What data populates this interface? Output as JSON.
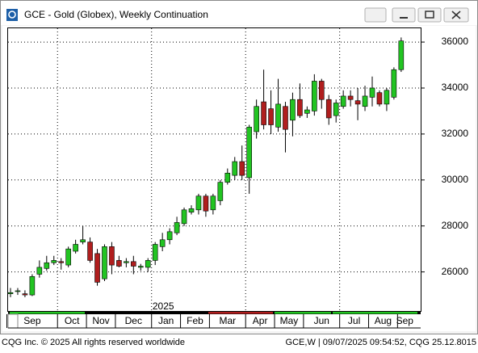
{
  "window": {
    "title": "GCE - Gold (Globex), Weekly Continuation"
  },
  "chart_data": {
    "type": "candlestick",
    "open": [
      25050,
      25150,
      25050,
      25000,
      25900,
      26150,
      26400,
      26450,
      26300,
      26900,
      27300,
      27300,
      26800,
      25700,
      27100,
      26500,
      26400,
      26450,
      26200,
      26200,
      26500,
      27100,
      27400,
      27700,
      28100,
      28600,
      28700,
      29300,
      28700,
      29100,
      29900,
      30200,
      30800,
      30100,
      32100,
      33400,
      33100,
      32300,
      33200,
      32600,
      33500,
      32900,
      33000,
      34300,
      33500,
      32800,
      33200,
      33650,
      33450,
      33200,
      33600,
      33800,
      33300,
      33600,
      34800
    ],
    "high": [
      25300,
      25300,
      25200,
      25900,
      26500,
      26700,
      26700,
      26600,
      27100,
      27400,
      28000,
      27500,
      27000,
      27200,
      27300,
      26700,
      26600,
      26700,
      26350,
      26600,
      27300,
      27700,
      27900,
      28400,
      28800,
      28900,
      29400,
      29400,
      29400,
      30000,
      30500,
      31000,
      31500,
      32400,
      33500,
      34800,
      33900,
      34400,
      33400,
      33800,
      34200,
      33200,
      34600,
      34400,
      33700,
      33500,
      33900,
      33900,
      34000,
      34100,
      34500,
      33900,
      34000,
      34900,
      36200
    ],
    "low": [
      24900,
      25000,
      24900,
      24950,
      25750,
      26050,
      26300,
      26100,
      26200,
      26800,
      27200,
      26400,
      25400,
      25600,
      25900,
      26200,
      26200,
      25900,
      26050,
      26000,
      26300,
      26900,
      27200,
      27600,
      28000,
      28500,
      28500,
      28400,
      28500,
      28900,
      29800,
      30000,
      30000,
      29400,
      31800,
      32200,
      32000,
      32100,
      31200,
      31900,
      32700,
      32700,
      32800,
      33100,
      32400,
      32500,
      33100,
      33200,
      32600,
      33000,
      33200,
      33200,
      33000,
      33500,
      34700
    ],
    "close": [
      25100,
      25180,
      25000,
      25800,
      26200,
      26400,
      26500,
      26400,
      27000,
      27200,
      27400,
      26500,
      25550,
      27100,
      26300,
      26250,
      26450,
      26250,
      26250,
      26500,
      27200,
      27400,
      27750,
      28150,
      28700,
      28750,
      29300,
      28650,
      29300,
      29900,
      30300,
      30800,
      30200,
      32300,
      33200,
      32400,
      32400,
      33300,
      32200,
      33500,
      32800,
      33050,
      34300,
      33500,
      32700,
      33350,
      33650,
      33500,
      33300,
      33650,
      34000,
      33300,
      33900,
      34800,
      36050
    ],
    "up_color": "#22c422",
    "down_color": "#b01e1e",
    "ylim": [
      24300,
      36600
    ],
    "yticks": [
      26000,
      28000,
      30000,
      32000,
      34000,
      36000
    ],
    "grid": true,
    "xticks": [
      {
        "value": 0,
        "label": "Sep"
      },
      {
        "value": 7,
        "label": "Oct"
      },
      {
        "value": 11,
        "label": "Nov"
      },
      {
        "value": 15,
        "label": "Dec"
      },
      {
        "value": 20,
        "label": "Jan"
      },
      {
        "value": 24,
        "label": "Feb"
      },
      {
        "value": 28,
        "label": "Mar"
      },
      {
        "value": 33,
        "label": "Apr"
      },
      {
        "value": 37,
        "label": "May"
      },
      {
        "value": 41,
        "label": "Jun"
      },
      {
        "value": 46,
        "label": "Jul"
      },
      {
        "value": 50,
        "label": "Aug"
      },
      {
        "value": 54,
        "label": "Sep"
      }
    ],
    "year_label": "2025"
  },
  "footer": {
    "left": "CQG Inc. © 2025 All rights reserved worldwide",
    "right": "GCE,W | 09/07/2025 09:54:52, CQG 25.12.8015"
  }
}
